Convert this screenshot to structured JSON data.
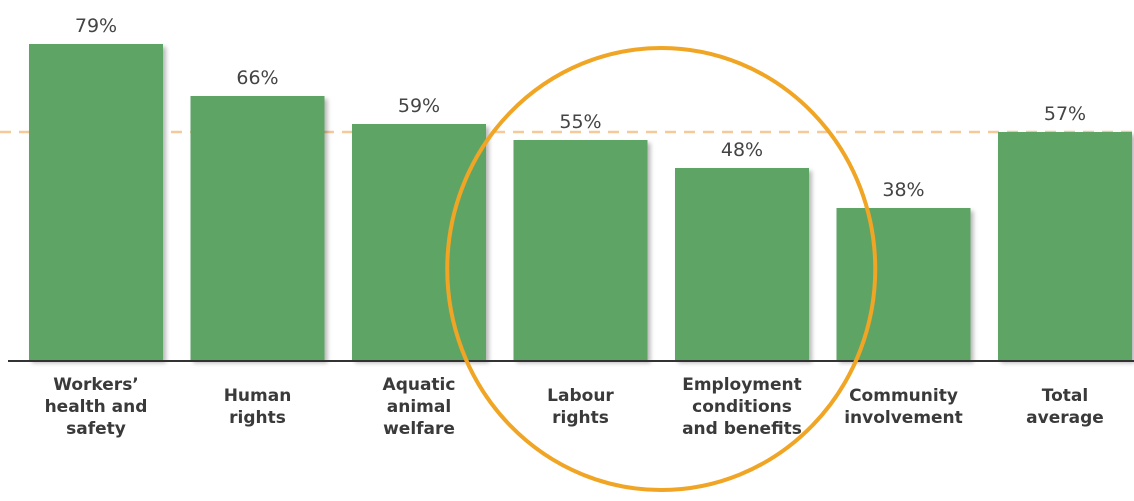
{
  "chart_data": {
    "type": "bar",
    "categories": [
      "Workers’\nhealth and\nsafety",
      "Human\nrights",
      "Aquatic\nanimal\nwelfare",
      "Labour\nrights",
      "Employment\nconditions\nand benefits",
      "Community\ninvolvement",
      "Total\naverage"
    ],
    "values": [
      79,
      66,
      59,
      55,
      48,
      38,
      57
    ],
    "value_labels": [
      "79%",
      "66%",
      "59%",
      "55%",
      "48%",
      "38%",
      "57%"
    ],
    "reference_line": 57,
    "ylim": [
      0,
      80
    ],
    "grid": false,
    "legend": "none",
    "highlight": {
      "shape": "ellipse",
      "categories": [
        "Labour\nrights",
        "Employment\nconditions\nand benefits"
      ]
    },
    "colors": {
      "bar": "#5ea465",
      "reference_line": "#f6c99b",
      "highlight": "#f0a524",
      "axis": "#333333",
      "value_text": "#444444",
      "category_text": "#3a3a3a"
    }
  }
}
